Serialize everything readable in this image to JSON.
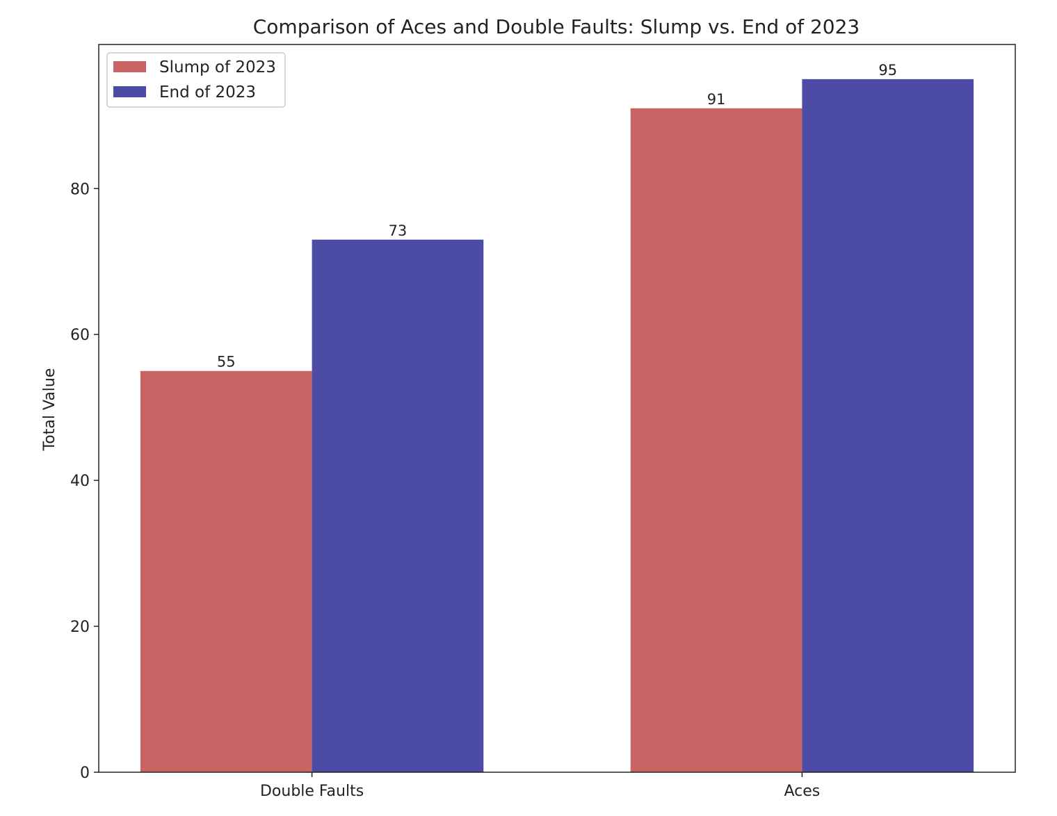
{
  "chart_data": {
    "type": "bar",
    "title": "Comparison of Aces and Double Faults: Slump vs. End of 2023",
    "xlabel": "",
    "ylabel": "Total Value",
    "categories": [
      "Double Faults",
      "Aces"
    ],
    "series": [
      {
        "name": "Slump of 2023",
        "values": [
          55,
          91
        ],
        "color": "#c86464"
      },
      {
        "name": "End of 2023",
        "values": [
          73,
          95
        ],
        "color": "#4c4ca6"
      }
    ],
    "ylim": [
      0,
      99.75
    ],
    "yticks": [
      0,
      20,
      40,
      60,
      80
    ],
    "grid": false,
    "legend_position": "top-left"
  }
}
